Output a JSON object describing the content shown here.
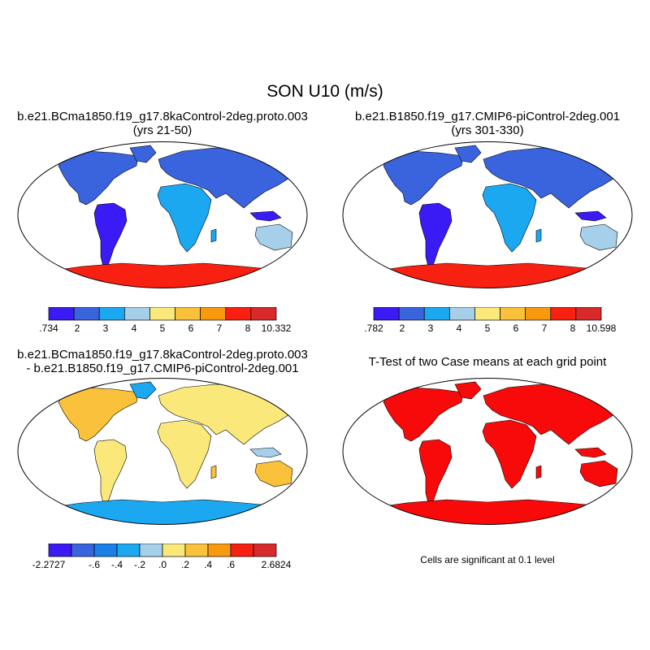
{
  "figure": {
    "title": "SON U10 (m/s)",
    "significance_note": "Cells are significant at 0.1 level"
  },
  "panels": [
    {
      "title_line1": "b.e21.BCma1850.f19_g17.8kaControl-2deg.proto.003",
      "title_line2": "(yrs 21-50)",
      "colorbar": {
        "colors": [
          "#3b1bf5",
          "#3a64dd",
          "#1ba8f0",
          "#a6d0ea",
          "#fae97a",
          "#fac13a",
          "#f89a0e",
          "#f82010",
          "#d82a2a"
        ],
        "labels": [
          ".734",
          "2",
          "3",
          "4",
          "5",
          "6",
          "7",
          "8",
          "10.332"
        ]
      }
    },
    {
      "title_line1": "b.e21.B1850.f19_g17.CMIP6-piControl-2deg.001",
      "title_line2": "(yrs 301-330)",
      "colorbar": {
        "colors": [
          "#3b1bf5",
          "#3a64dd",
          "#1ba8f0",
          "#a6d0ea",
          "#fae97a",
          "#fac13a",
          "#f89a0e",
          "#f82010",
          "#d82a2a"
        ],
        "labels": [
          ".782",
          "2",
          "3",
          "4",
          "5",
          "6",
          "7",
          "8",
          "10.598"
        ]
      }
    },
    {
      "title_line1": "b.e21.BCma1850.f19_g17.8kaControl-2deg.proto.003",
      "title_line2": "- b.e21.B1850.f19_g17.CMIP6-piControl-2deg.001",
      "colorbar": {
        "colors": [
          "#3b1bf5",
          "#3a64dd",
          "#1a80e8",
          "#1ba8f0",
          "#a6d0ea",
          "#fae97a",
          "#fac13a",
          "#f89a0e",
          "#f82010",
          "#d82a2a"
        ],
        "labels": [
          "-2.2727",
          "",
          "-.6",
          "-.4",
          "-.2",
          ".0",
          ".2",
          ".4",
          ".6",
          "",
          "2.6824"
        ]
      }
    },
    {
      "title_line1": "T-Test of two Case means at each grid point",
      "significance_color": "#f80a0a"
    }
  ]
}
